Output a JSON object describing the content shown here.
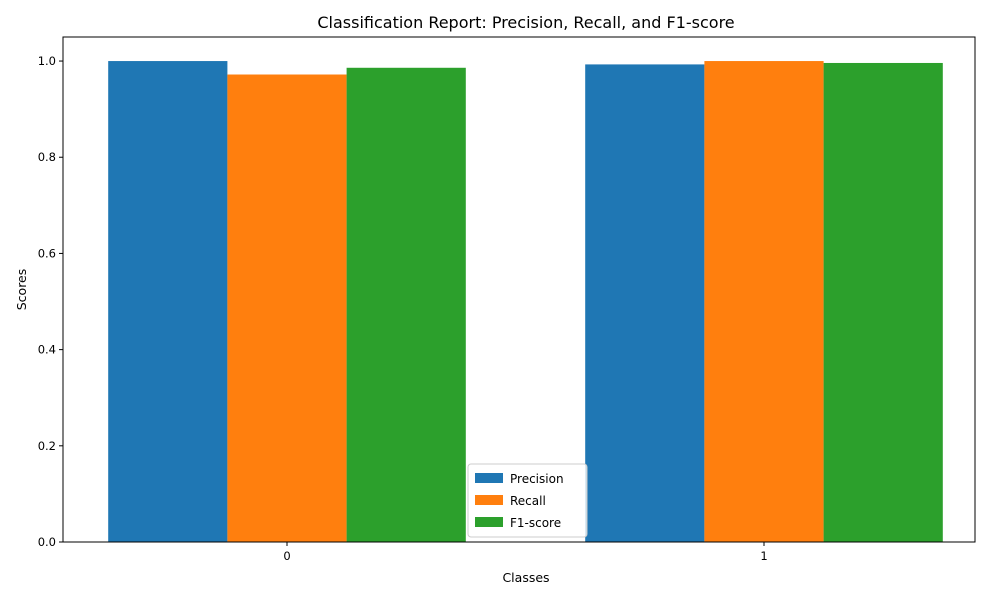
{
  "chart_data": {
    "type": "bar",
    "title": "Classification Report: Precision, Recall, and F1-score",
    "xlabel": "Classes",
    "ylabel": "Scores",
    "categories": [
      "0",
      "1"
    ],
    "series": [
      {
        "name": "Precision",
        "color": "#1f77b4",
        "values": [
          1.0,
          0.993
        ]
      },
      {
        "name": "Recall",
        "color": "#ff7f0e",
        "values": [
          0.972,
          1.0
        ]
      },
      {
        "name": "F1-score",
        "color": "#2ca02c",
        "values": [
          0.986,
          0.996
        ]
      }
    ],
    "ylim": [
      0,
      1.05
    ],
    "yticks": [
      0.0,
      0.2,
      0.4,
      0.6,
      0.8,
      1.0
    ],
    "ytick_labels": [
      "0.0",
      "0.2",
      "0.4",
      "0.6",
      "0.8",
      "1.0"
    ],
    "grid": false,
    "legend_position": "bottom-center"
  }
}
